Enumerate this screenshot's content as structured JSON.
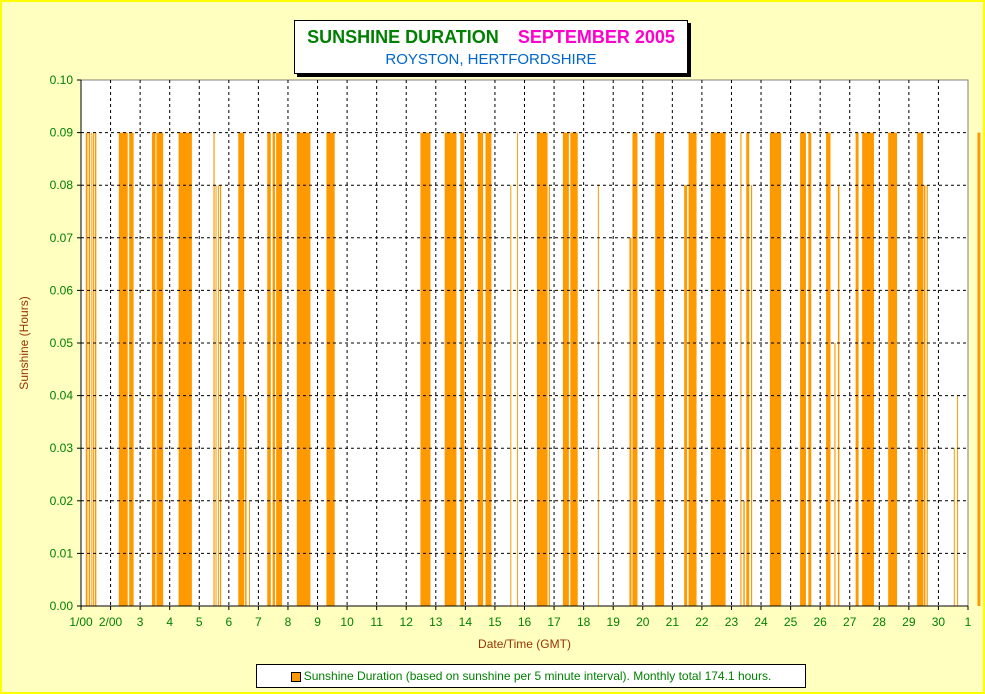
{
  "header": {
    "title": "SUNSHINE DURATION",
    "title_month": "SEPTEMBER 2005",
    "subtitle": "ROYSTON, HERTFORDSHIRE"
  },
  "legend": {
    "label": "Sunshine Duration (based on sunshine per 5 minute interval). Monthly total 174.1 hours."
  },
  "colors": {
    "series": "#ff9900",
    "axis_tick": "#008000",
    "axis_title": "#993300",
    "title": "#008000",
    "month": "#ff00cc",
    "subtitle": "#0066cc",
    "background": "#ffffc0"
  },
  "chart_data": {
    "type": "bar",
    "title": "SUNSHINE DURATION SEPTEMBER 2005",
    "subtitle": "ROYSTON, HERTFORDSHIRE",
    "xlabel": "Date/Time (GMT)",
    "ylabel": "Sunshine (Hours)",
    "ylim": [
      0,
      0.1
    ],
    "xlim": [
      1,
      31
    ],
    "grid": true,
    "legend_position": "bottom",
    "yticks": [
      "0.00",
      "0.01",
      "0.02",
      "0.03",
      "0.04",
      "0.05",
      "0.06",
      "0.07",
      "0.08",
      "0.09",
      "0.10"
    ],
    "xticks": [
      "1/00",
      "2/00",
      "3",
      "4",
      "5",
      "6",
      "7",
      "8",
      "9",
      "10",
      "11",
      "12",
      "13",
      "14",
      "15",
      "16",
      "17",
      "18",
      "19",
      "20",
      "21",
      "22",
      "23",
      "24",
      "25",
      "26",
      "27",
      "28",
      "29",
      "30",
      "1"
    ],
    "series": [
      {
        "name": "Sunshine Duration (based on sunshine per 5 minute interval). Monthly total 174.1 hours.",
        "color": "#ff9900",
        "bands": [
          {
            "x0": 1.16,
            "x1": 1.22,
            "y": 0.09
          },
          {
            "x0": 1.26,
            "x1": 1.31,
            "y": 0.09
          },
          {
            "x0": 1.35,
            "x1": 1.38,
            "y": 0.09
          },
          {
            "x0": 1.41,
            "x1": 1.44,
            "y": 0.09
          },
          {
            "x0": 1.47,
            "x1": 1.52,
            "y": 0.09
          },
          {
            "x0": 2.28,
            "x1": 2.58,
            "y": 0.09
          },
          {
            "x0": 2.63,
            "x1": 2.78,
            "y": 0.09
          },
          {
            "x0": 3.4,
            "x1": 3.52,
            "y": 0.09
          },
          {
            "x0": 3.55,
            "x1": 3.78,
            "y": 0.09
          },
          {
            "x0": 4.3,
            "x1": 4.75,
            "y": 0.09
          },
          {
            "x0": 5.48,
            "x1": 5.52,
            "y": 0.09
          },
          {
            "x0": 5.55,
            "x1": 5.58,
            "y": 0.08
          },
          {
            "x0": 5.63,
            "x1": 5.66,
            "y": 0.08
          },
          {
            "x0": 5.7,
            "x1": 5.74,
            "y": 0.08
          },
          {
            "x0": 6.32,
            "x1": 6.52,
            "y": 0.09
          },
          {
            "x0": 6.55,
            "x1": 6.6,
            "y": 0.04
          },
          {
            "x0": 6.68,
            "x1": 6.71,
            "y": 0.02
          },
          {
            "x0": 7.3,
            "x1": 7.42,
            "y": 0.09
          },
          {
            "x0": 7.48,
            "x1": 7.56,
            "y": 0.09
          },
          {
            "x0": 7.6,
            "x1": 7.8,
            "y": 0.09
          },
          {
            "x0": 8.3,
            "x1": 8.76,
            "y": 0.09
          },
          {
            "x0": 9.3,
            "x1": 9.58,
            "y": 0.09
          },
          {
            "x0": 12.48,
            "x1": 12.82,
            "y": 0.09
          },
          {
            "x0": 13.3,
            "x1": 13.7,
            "y": 0.09
          },
          {
            "x0": 13.83,
            "x1": 13.96,
            "y": 0.09
          },
          {
            "x0": 14.42,
            "x1": 14.6,
            "y": 0.09
          },
          {
            "x0": 14.68,
            "x1": 14.88,
            "y": 0.09
          },
          {
            "x0": 15.52,
            "x1": 15.55,
            "y": 0.08
          },
          {
            "x0": 15.75,
            "x1": 15.78,
            "y": 0.09
          },
          {
            "x0": 16.42,
            "x1": 16.78,
            "y": 0.09
          },
          {
            "x0": 16.82,
            "x1": 16.86,
            "y": 0.08
          },
          {
            "x0": 17.3,
            "x1": 17.5,
            "y": 0.09
          },
          {
            "x0": 17.55,
            "x1": 17.8,
            "y": 0.09
          },
          {
            "x0": 18.48,
            "x1": 18.5,
            "y": 0.08
          },
          {
            "x0": 19.55,
            "x1": 19.62,
            "y": 0.07
          },
          {
            "x0": 19.65,
            "x1": 19.82,
            "y": 0.09
          },
          {
            "x0": 20.42,
            "x1": 20.72,
            "y": 0.09
          },
          {
            "x0": 21.4,
            "x1": 21.5,
            "y": 0.08
          },
          {
            "x0": 21.55,
            "x1": 21.82,
            "y": 0.09
          },
          {
            "x0": 22.3,
            "x1": 22.8,
            "y": 0.09
          },
          {
            "x0": 23.3,
            "x1": 23.34,
            "y": 0.09
          },
          {
            "x0": 23.4,
            "x1": 23.45,
            "y": 0.02
          },
          {
            "x0": 23.5,
            "x1": 23.6,
            "y": 0.09
          },
          {
            "x0": 23.66,
            "x1": 23.7,
            "y": 0.08
          },
          {
            "x0": 24.3,
            "x1": 24.68,
            "y": 0.09
          },
          {
            "x0": 25.32,
            "x1": 25.52,
            "y": 0.09
          },
          {
            "x0": 25.6,
            "x1": 25.7,
            "y": 0.09
          },
          {
            "x0": 26.2,
            "x1": 26.35,
            "y": 0.09
          },
          {
            "x0": 26.48,
            "x1": 26.52,
            "y": 0.05
          },
          {
            "x0": 26.6,
            "x1": 26.65,
            "y": 0.08
          },
          {
            "x0": 27.2,
            "x1": 27.3,
            "y": 0.09
          },
          {
            "x0": 27.42,
            "x1": 27.82,
            "y": 0.09
          },
          {
            "x0": 28.3,
            "x1": 28.6,
            "y": 0.09
          },
          {
            "x0": 29.28,
            "x1": 29.48,
            "y": 0.09
          },
          {
            "x0": 29.5,
            "x1": 29.56,
            "y": 0.08
          },
          {
            "x0": 29.6,
            "x1": 29.64,
            "y": 0.08
          },
          {
            "x0": 30.52,
            "x1": 30.55,
            "y": 0.03
          },
          {
            "x0": 30.63,
            "x1": 30.66,
            "y": 0.04
          },
          {
            "x0": 31.32,
            "x1": 31.42,
            "y": 0.09
          }
        ]
      }
    ]
  }
}
